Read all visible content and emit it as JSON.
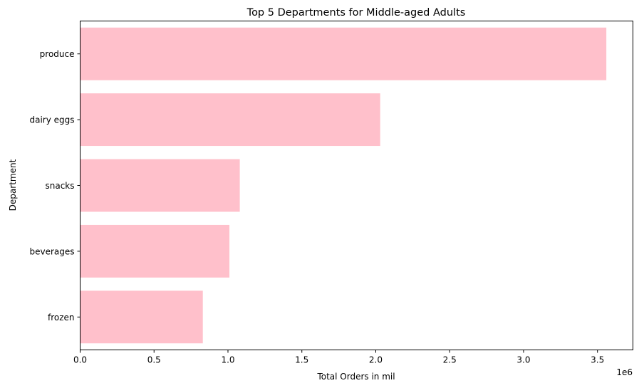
{
  "chart_data": {
    "type": "bar",
    "orientation": "horizontal",
    "title": "Top 5 Departments for Middle-aged Adults",
    "xlabel": "Total Orders in mil",
    "ylabel": "Department",
    "x_offset_label": "1e6",
    "categories": [
      "produce",
      "dairy eggs",
      "snacks",
      "beverages",
      "frozen"
    ],
    "values": [
      3560000,
      2030000,
      1080000,
      1010000,
      830000
    ],
    "xlim": [
      0,
      3740000
    ],
    "xticks": [
      0,
      500000,
      1000000,
      1500000,
      2000000,
      2500000,
      3000000,
      3500000
    ],
    "xtick_labels": [
      "0.0",
      "0.5",
      "1.0",
      "1.5",
      "2.0",
      "2.5",
      "3.0",
      "3.5"
    ],
    "grid": false,
    "bar_color": "#ffc0cb"
  }
}
